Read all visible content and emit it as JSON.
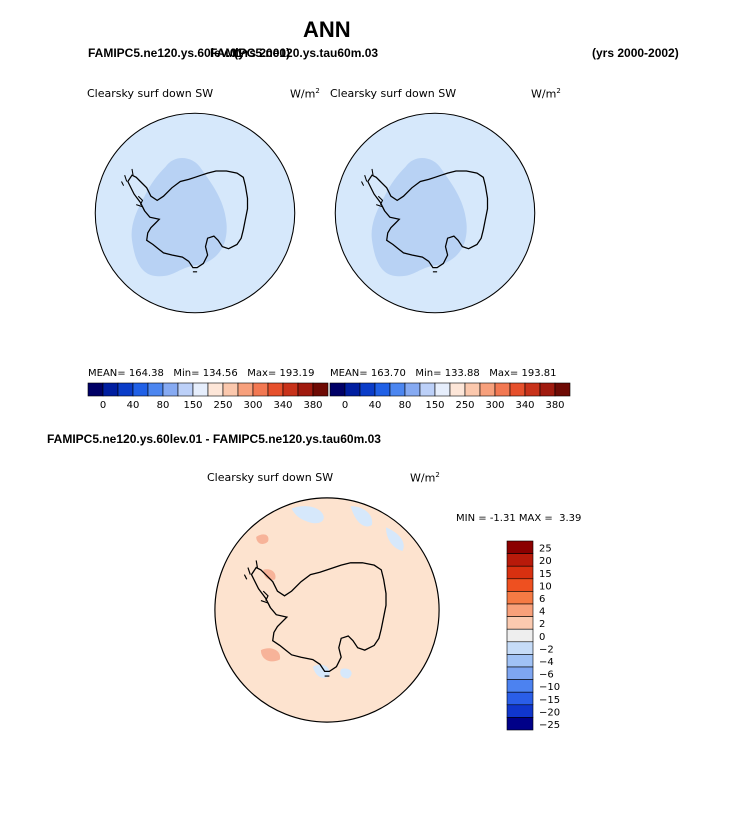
{
  "header": {
    "title": "ANN",
    "case_left": "FAMIPC5.ne120.ys.60lev.01",
    "case_overlap": "FAMIPC5.ne120.ys.tau60m.03",
    "years_left": "(yrs 2000)",
    "years_right": "(yrs 2000-2002)",
    "diff_title": "FAMIPC5.ne120.ys.60lev.01 - FAMIPC5.ne120.ys.tau60m.03"
  },
  "colors": {
    "ocean_fill": "#d6e8fb",
    "land_low": "#b8d2f4",
    "diff_bg": "#fde3cf",
    "diff_pos": "#f7b399",
    "diff_neg": "#d6e8fb"
  },
  "chart_data": [
    {
      "type": "heatmap",
      "projection": "south-polar-stereographic",
      "title": "Clearsky surf down SW",
      "units": "W/m",
      "units_sup": "2",
      "stats": {
        "mean_label": "MEAN=",
        "mean": "164.38",
        "min_label": "Min=",
        "min": "134.56",
        "max_label": "Max=",
        "max": "193.19"
      },
      "colorbar": {
        "orientation": "horizontal",
        "colors": [
          "#000066",
          "#001ea0",
          "#0a3cc8",
          "#2060e6",
          "#4c86f0",
          "#86aaf2",
          "#bcd0f8",
          "#e6eefc",
          "#fde6d8",
          "#fbc8ad",
          "#f7a07c",
          "#f27852",
          "#e6502c",
          "#c8321a",
          "#a01a0e",
          "#6e0a04"
        ],
        "tick_labels": [
          "0",
          "40",
          "80",
          "150",
          "250",
          "300",
          "340",
          "380"
        ]
      }
    },
    {
      "type": "heatmap",
      "projection": "south-polar-stereographic",
      "title": "Clearsky surf down SW",
      "units": "W/m",
      "units_sup": "2",
      "stats": {
        "mean_label": "MEAN=",
        "mean": "163.70",
        "min_label": "Min=",
        "min": "133.88",
        "max_label": "Max=",
        "max": "193.81"
      },
      "colorbar": {
        "orientation": "horizontal",
        "colors": [
          "#000066",
          "#001ea0",
          "#0a3cc8",
          "#2060e6",
          "#4c86f0",
          "#86aaf2",
          "#bcd0f8",
          "#e6eefc",
          "#fde6d8",
          "#fbc8ad",
          "#f7a07c",
          "#f27852",
          "#e6502c",
          "#c8321a",
          "#a01a0e",
          "#6e0a04"
        ],
        "tick_labels": [
          "0",
          "40",
          "80",
          "150",
          "250",
          "300",
          "340",
          "380"
        ]
      }
    },
    {
      "type": "heatmap",
      "projection": "south-polar-stereographic",
      "title": "Clearsky surf down SW",
      "units": "W/m",
      "units_sup": "2",
      "stats": {
        "min_label": "MIN =",
        "min": "-1.31",
        "max_label": "MAX =",
        "max": "3.39"
      },
      "colorbar": {
        "orientation": "vertical",
        "colors": [
          "#8b0000",
          "#b81a0a",
          "#d83010",
          "#ee5020",
          "#f57a44",
          "#f8a07a",
          "#fbcab0",
          "#eeeeee",
          "#c6dcf8",
          "#a0c2f6",
          "#7ea6f2",
          "#4c82f0",
          "#2a5ee8",
          "#1036cc",
          "#000088"
        ],
        "tick_labels": [
          "25",
          "20",
          "15",
          "10",
          "6",
          "4",
          "2",
          "0",
          "−2",
          "−4",
          "−6",
          "−10",
          "−15",
          "−20",
          "−25"
        ]
      }
    }
  ]
}
